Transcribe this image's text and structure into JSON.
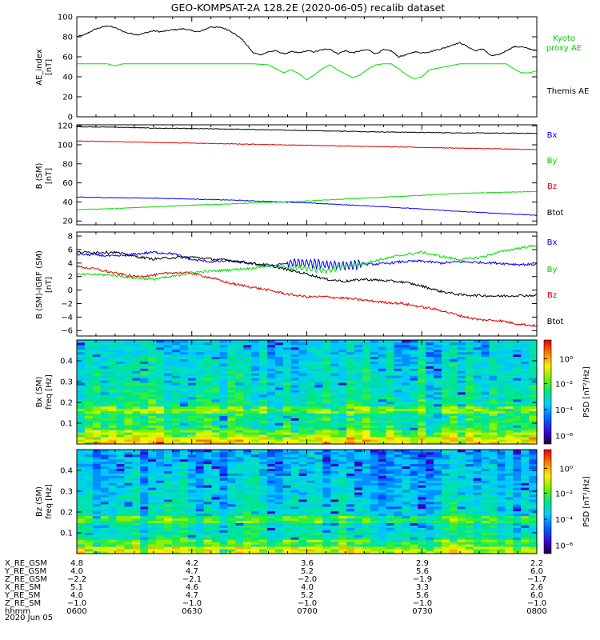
{
  "title": "GEO-KOMPSAT-2A 128.2E (2020-06-05) recalib dataset",
  "colors": {
    "black": "#000000",
    "green": "#00dd00",
    "red": "#e00000",
    "blue": "#0000ff",
    "green_text": "#00cc00"
  },
  "chart_data": [
    {
      "type": "line",
      "panel": "AE index",
      "ylabel": "AE_index",
      "yunit": "[nT]",
      "ylim": [
        0,
        100
      ],
      "yticks": [
        "0",
        "20",
        "40",
        "60",
        "80",
        "100"
      ],
      "x_range": [
        "06:00",
        "08:00"
      ],
      "legend": [
        "Kyoto",
        "proxy AE",
        "Themis AE"
      ],
      "series": [
        {
          "name": "Themis AE",
          "color": "#000000",
          "x": [
            0,
            2,
            5,
            8,
            10,
            13,
            16,
            18,
            20,
            22,
            25,
            28,
            30,
            32,
            35,
            38,
            40,
            43,
            46,
            48,
            50,
            52,
            54,
            56,
            58,
            60,
            62,
            64,
            66,
            68,
            70,
            72,
            74,
            76,
            78,
            80,
            82,
            84,
            86,
            88,
            90,
            92,
            94,
            96,
            98,
            100,
            102,
            104,
            106,
            108,
            110,
            112,
            114,
            116,
            118,
            120
          ],
          "y": [
            80,
            82,
            88,
            91,
            89,
            84,
            82,
            84,
            86,
            85,
            87,
            88,
            86,
            85,
            90,
            89,
            86,
            78,
            64,
            62,
            65,
            66,
            63,
            65,
            64,
            66,
            65,
            67,
            68,
            63,
            66,
            64,
            66,
            67,
            63,
            67,
            66,
            60,
            62,
            65,
            64,
            65,
            67,
            69,
            72,
            74,
            70,
            66,
            68,
            61,
            62,
            66,
            70,
            70,
            68,
            66
          ]
        },
        {
          "name": "Kyoto proxy AE",
          "color": "#00dd00",
          "x": [
            0,
            6,
            8,
            10,
            12,
            20,
            30,
            40,
            42,
            44,
            46,
            50,
            52,
            54,
            56,
            58,
            60,
            62,
            64,
            66,
            68,
            70,
            72,
            74,
            76,
            78,
            80,
            82,
            84,
            86,
            88,
            90,
            92,
            100,
            108,
            112,
            114,
            116,
            118,
            120
          ],
          "y": [
            53,
            53,
            53,
            51,
            53,
            53,
            53,
            53,
            53,
            53,
            53,
            52,
            48,
            44,
            47,
            43,
            37,
            42,
            48,
            52,
            47,
            43,
            39,
            42,
            48,
            52,
            53,
            53,
            48,
            42,
            38,
            40,
            47,
            53,
            53,
            53,
            48,
            44,
            44,
            46
          ]
        }
      ]
    },
    {
      "type": "line",
      "panel": "B (SM)",
      "ylabel": "B (SM)",
      "yunit": "[nT]",
      "ylim": [
        16,
        121
      ],
      "yticks": [
        "20",
        "40",
        "60",
        "80",
        "100",
        "120"
      ],
      "x_range": [
        "06:00",
        "08:00"
      ],
      "legend": [
        "Bx",
        "By",
        "Bz",
        "Btot"
      ],
      "series": [
        {
          "name": "Btot",
          "color": "#000000",
          "x": [
            0,
            10,
            20,
            40,
            60,
            80,
            100,
            120
          ],
          "y": [
            119,
            118.5,
            117.5,
            116.5,
            115,
            113.5,
            112.5,
            112
          ]
        },
        {
          "name": "Bz",
          "color": "#e00000",
          "x": [
            0,
            10,
            20,
            40,
            60,
            80,
            100,
            120
          ],
          "y": [
            104,
            103.3,
            102.5,
            101,
            99.5,
            98,
            96.5,
            95
          ]
        },
        {
          "name": "Bx",
          "color": "#0000ff",
          "x": [
            0,
            10,
            20,
            40,
            60,
            80,
            100,
            120
          ],
          "y": [
            45,
            44.5,
            44,
            42,
            39,
            35,
            30,
            26
          ]
        },
        {
          "name": "By",
          "color": "#00dd00",
          "x": [
            0,
            10,
            20,
            40,
            60,
            80,
            100,
            120
          ],
          "y": [
            32,
            33,
            35,
            38,
            41,
            45,
            49,
            51
          ]
        }
      ]
    },
    {
      "type": "line",
      "panel": "B (SM)-IGRF (SM)",
      "ylabel": "B (SM)-IGRF (SM)",
      "yunit": "[nT]",
      "ylim": [
        -6.8,
        8.6
      ],
      "yticks": [
        "-6",
        "-4",
        "-2",
        "0",
        "2",
        "4",
        "6",
        "8"
      ],
      "x_range": [
        "06:00",
        "08:00"
      ],
      "legend": [
        "Bx",
        "By",
        "Bz",
        "Btot"
      ],
      "series": [
        {
          "name": "Bx",
          "color": "#0000ff",
          "x": [
            0,
            5,
            10,
            15,
            20,
            25,
            30,
            35,
            40,
            45,
            50,
            55,
            60,
            65,
            70,
            75,
            80,
            85,
            90,
            95,
            100,
            105,
            110,
            115,
            120
          ],
          "y": [
            5.3,
            5.2,
            5,
            5.3,
            5.6,
            5.4,
            4.5,
            4.2,
            4.3,
            4,
            3.5,
            4,
            4,
            3.8,
            3.6,
            3.8,
            3.9,
            4.2,
            4.3,
            4,
            4.2,
            4.1,
            4,
            3.8,
            3.8
          ]
        },
        {
          "name": "By",
          "color": "#00dd00",
          "x": [
            0,
            5,
            10,
            15,
            20,
            25,
            30,
            35,
            40,
            45,
            50,
            55,
            60,
            65,
            70,
            75,
            80,
            85,
            90,
            95,
            100,
            105,
            110,
            115,
            120
          ],
          "y": [
            2.3,
            2.3,
            2.2,
            1.8,
            1.6,
            2,
            2.6,
            2.8,
            3,
            3.2,
            3.6,
            3.4,
            3.2,
            2.8,
            3.6,
            4,
            4.6,
            5.2,
            5.6,
            5,
            4.5,
            4.8,
            5.6,
            6.2,
            6.6
          ]
        },
        {
          "name": "Bz",
          "color": "#e00000",
          "x": [
            0,
            5,
            10,
            15,
            20,
            25,
            30,
            35,
            40,
            45,
            50,
            55,
            60,
            65,
            70,
            75,
            80,
            85,
            90,
            95,
            100,
            105,
            110,
            115,
            120
          ],
          "y": [
            3.5,
            3.1,
            2.5,
            2,
            2.2,
            2.6,
            2.5,
            1.8,
            1,
            0.5,
            0,
            -0.6,
            -1,
            -1,
            -1.2,
            -1.5,
            -1.8,
            -2,
            -2.5,
            -3,
            -3.8,
            -4.4,
            -4.5,
            -5,
            -5.3
          ]
        },
        {
          "name": "Btot",
          "color": "#000000",
          "x": [
            0,
            5,
            10,
            15,
            20,
            25,
            30,
            35,
            40,
            45,
            50,
            55,
            60,
            65,
            70,
            75,
            80,
            85,
            90,
            95,
            100,
            105,
            110,
            115,
            120
          ],
          "y": [
            5.6,
            5.6,
            5.6,
            5,
            4.6,
            4.8,
            4.9,
            4.6,
            4.4,
            4,
            3.7,
            3,
            2.4,
            1.6,
            1.3,
            1.6,
            1.4,
            1.2,
            0.6,
            -0.2,
            -0.7,
            -0.8,
            -0.9,
            -0.8,
            -0.8
          ]
        }
      ]
    },
    {
      "type": "heatmap",
      "panel": "Bx (SM) spectrogram",
      "ylabel": "Bx (SM)",
      "ylabel2": "freq [Hz]",
      "ylim": [
        0,
        0.5
      ],
      "yticks": [
        "0.1",
        "0.2",
        "0.3",
        "0.4"
      ],
      "colorbar_label": "PSD [nT²/Hz]",
      "colorbar_ticks": [
        "10⁰",
        "10⁻²",
        "10⁻⁴",
        "10⁻⁶"
      ],
      "x_range": [
        "06:00",
        "08:00"
      ]
    },
    {
      "type": "heatmap",
      "panel": "Bz (SM) spectrogram",
      "ylabel": "Bz (SM)",
      "ylabel2": "freq [Hz]",
      "ylim": [
        0,
        0.5
      ],
      "yticks": [
        "0.1",
        "0.2",
        "0.3",
        "0.4"
      ],
      "colorbar_label": "PSD [nT²/Hz]",
      "colorbar_ticks": [
        "10⁰",
        "10⁻²",
        "10⁻⁴",
        "10⁻⁶"
      ],
      "x_range": [
        "06:00",
        "08:00"
      ]
    }
  ],
  "coords": {
    "rows": [
      {
        "label": "X_RE_GSM",
        "values": [
          "4.8",
          "4.2",
          "3.6",
          "2.9",
          "2.2"
        ]
      },
      {
        "label": "Y_RE_GSM",
        "values": [
          "4.0",
          "4.7",
          "5.2",
          "5.6",
          "6.0"
        ]
      },
      {
        "label": "Z_RE_GSM",
        "values": [
          "−2.2",
          "−2.1",
          "−2.0",
          "−1.9",
          "−1.7"
        ]
      },
      {
        "label": "X_RE_SM",
        "values": [
          "5.1",
          "4.6",
          "4.0",
          "3.3",
          "2.6"
        ]
      },
      {
        "label": "Y_RE_SM",
        "values": [
          "4.0",
          "4.7",
          "5.2",
          "5.6",
          "6.0"
        ]
      },
      {
        "label": "Z_RE_SM",
        "values": [
          "−1.0",
          "−1.0",
          "−1.0",
          "−1.0",
          "−1.0"
        ]
      },
      {
        "label": "hhmm",
        "values": [
          "0600",
          "0630",
          "0700",
          "0730",
          "0800"
        ]
      }
    ],
    "date": "2020 Jun 05"
  }
}
